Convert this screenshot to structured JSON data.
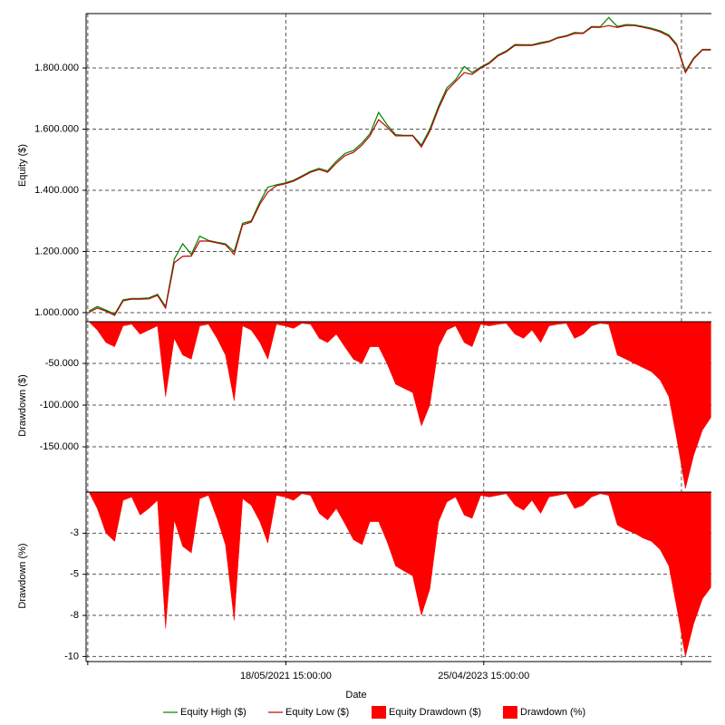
{
  "chart_data": {
    "type": "line",
    "xlabel": "Date",
    "x": [
      "2019-06-15",
      "2019-07-15",
      "2019-08-15",
      "2019-09-15",
      "2019-10-15",
      "2019-11-15",
      "2019-12-15",
      "2020-01-15",
      "2020-02-15",
      "2020-03-15",
      "2020-04-15",
      "2020-05-15",
      "2020-06-15",
      "2020-07-15",
      "2020-08-15",
      "2020-09-15",
      "2020-10-15",
      "2020-11-15",
      "2020-12-15",
      "2021-01-15",
      "2021-02-15",
      "2021-03-15",
      "2021-04-15",
      "2021-05-15",
      "2021-06-15",
      "2021-07-15",
      "2021-08-15",
      "2021-09-15",
      "2021-10-15",
      "2021-11-15",
      "2021-12-15",
      "2022-01-15",
      "2022-02-15",
      "2022-03-15",
      "2022-04-15",
      "2022-05-15",
      "2022-06-15",
      "2022-07-15",
      "2022-08-15",
      "2022-09-15",
      "2022-10-15",
      "2022-11-15",
      "2022-12-15",
      "2023-01-15",
      "2023-02-15",
      "2023-03-15",
      "2023-04-15",
      "2023-05-15",
      "2023-06-15",
      "2023-07-15",
      "2023-08-15",
      "2023-09-15",
      "2023-10-15",
      "2023-11-15",
      "2023-12-15",
      "2024-01-15",
      "2024-02-15",
      "2024-03-15",
      "2024-04-15",
      "2024-05-15",
      "2024-06-15",
      "2024-07-15",
      "2024-08-15",
      "2024-09-15",
      "2024-10-15",
      "2024-11-15",
      "2024-12-15",
      "2025-01-15",
      "2025-02-15",
      "2025-03-15",
      "2025-04-15",
      "2025-05-15",
      "2025-06-15",
      "2025-07-15"
    ],
    "xlim": [
      "2019-06-05",
      "2025-07-17"
    ],
    "xticks": [
      {
        "value": "2019-06-11",
        "label": null
      },
      {
        "value": "2021-05-18T15:00:00",
        "label": "18/05/2021 15:00:00"
      },
      {
        "value": "2023-04-25T15:00:00",
        "label": "25/04/2023 15:00:00"
      },
      {
        "value": "2025-04-01",
        "label": null
      }
    ],
    "grid": true,
    "panels": [
      {
        "ylabel": "Equity ($)",
        "ylim": [
          985000,
          1978000
        ],
        "yticks": [
          {
            "value": 1000000,
            "label": "1.000.000"
          },
          {
            "value": 1200000,
            "label": "1.200.000"
          },
          {
            "value": 1400000,
            "label": "1.400.000"
          },
          {
            "value": 1600000,
            "label": "1.600.000"
          },
          {
            "value": 1800000,
            "label": "1.800.000"
          }
        ],
        "series": [
          {
            "name": "Equity High ($)",
            "type": "line",
            "color": "#008000",
            "values": [
              1005000,
              1020000,
              1008000,
              995000,
              1042000,
              1046000,
              1046000,
              1048000,
              1060000,
              1020000,
              1175000,
              1225000,
              1190000,
              1250000,
              1236000,
              1230000,
              1225000,
              1200000,
              1292000,
              1300000,
              1362000,
              1410000,
              1418000,
              1424000,
              1433000,
              1447000,
              1462000,
              1472000,
              1463000,
              1495000,
              1520000,
              1530000,
              1555000,
              1585000,
              1655000,
              1615000,
              1582000,
              1580000,
              1580000,
              1548000,
              1600000,
              1675000,
              1735000,
              1762000,
              1805000,
              1785000,
              1803000,
              1818000,
              1842000,
              1856000,
              1877000,
              1876000,
              1876000,
              1883000,
              1888000,
              1900000,
              1906000,
              1916000,
              1915000,
              1936000,
              1935000,
              1965000,
              1936000,
              1942000,
              1941000,
              1936000,
              1930000,
              1922000,
              1908000,
              1878000,
              1790000,
              1833000,
              1861000,
              1861000
            ]
          },
          {
            "name": "Equity Low ($)",
            "type": "line",
            "color": "#c00000",
            "values": [
              1000000,
              1015000,
              1005000,
              991000,
              1038000,
              1044000,
              1044000,
              1045000,
              1056000,
              1015000,
              1163000,
              1184000,
              1185000,
              1234000,
              1234000,
              1228000,
              1222000,
              1190000,
              1287000,
              1296000,
              1355000,
              1394000,
              1415000,
              1421000,
              1430000,
              1444000,
              1459000,
              1468000,
              1459000,
              1489000,
              1513000,
              1524000,
              1548000,
              1578000,
              1631000,
              1607000,
              1578000,
              1578000,
              1578000,
              1542000,
              1593000,
              1667000,
              1726000,
              1756000,
              1785000,
              1779000,
              1800000,
              1815000,
              1839000,
              1853000,
              1874000,
              1874000,
              1874000,
              1880000,
              1886000,
              1898000,
              1904000,
              1913000,
              1913000,
              1933000,
              1933000,
              1939000,
              1933000,
              1939000,
              1939000,
              1933000,
              1927000,
              1918000,
              1904000,
              1874000,
              1785000,
              1830000,
              1859000,
              1859000
            ]
          }
        ]
      },
      {
        "ylabel": "Drawdown ($)",
        "ylim": [
          -201000,
          0
        ],
        "yticks": [
          {
            "value": -50000,
            "label": "-50.000"
          },
          {
            "value": -100000,
            "label": "-100.000"
          },
          {
            "value": -150000,
            "label": "-150.000"
          }
        ],
        "series": [
          {
            "name": "Equity Drawdown ($)",
            "type": "area",
            "color": "#ff0000",
            "values": [
              0,
              -10000,
              -25000,
              -30000,
              -5000,
              -3000,
              -15000,
              -10000,
              -5000,
              -90000,
              -20000,
              -40000,
              -45000,
              -5000,
              -3000,
              -20000,
              -40000,
              -95000,
              -5000,
              -10000,
              -25000,
              -45000,
              -3000,
              -5000,
              -8000,
              -2000,
              -3000,
              -20000,
              -25000,
              -15000,
              -30000,
              -45000,
              -50000,
              -30000,
              -30000,
              -50000,
              -75000,
              -80000,
              -85000,
              -125000,
              -100000,
              -30000,
              -10000,
              -5000,
              -25000,
              -30000,
              -3000,
              -5000,
              -3000,
              -2000,
              -15000,
              -20000,
              -10000,
              -25000,
              -5000,
              -3000,
              -2000,
              -20000,
              -15000,
              -5000,
              -2000,
              -3000,
              -40000,
              -45000,
              -50000,
              -55000,
              -60000,
              -70000,
              -90000,
              -140000,
              -200000,
              -160000,
              -130000,
              -115000
            ]
          }
        ]
      },
      {
        "ylabel": "Drawdown (%)",
        "ylim": [
          -10.2,
          0
        ],
        "yticks": [
          {
            "value": -2.5,
            "label": "-3"
          },
          {
            "value": -5,
            "label": "-5"
          },
          {
            "value": -7.5,
            "label": "-8"
          },
          -10
        ],
        "series": [
          {
            "name": "Drawdown (%)",
            "type": "area",
            "color": "#ff0000",
            "values": [
              0,
              -1.0,
              -2.5,
              -3.0,
              -0.5,
              -0.3,
              -1.4,
              -1.0,
              -0.5,
              -8.3,
              -1.7,
              -3.3,
              -3.7,
              -0.4,
              -0.2,
              -1.6,
              -3.2,
              -7.8,
              -0.4,
              -0.8,
              -1.8,
              -3.1,
              -0.2,
              -0.3,
              -0.5,
              -0.1,
              -0.2,
              -1.3,
              -1.7,
              -1.0,
              -1.9,
              -2.9,
              -3.2,
              -1.8,
              -1.8,
              -3.0,
              -4.5,
              -4.8,
              -5.1,
              -7.5,
              -5.9,
              -1.8,
              -0.6,
              -0.3,
              -1.4,
              -1.6,
              -0.2,
              -0.3,
              -0.2,
              -0.1,
              -0.8,
              -1.1,
              -0.5,
              -1.3,
              -0.3,
              -0.2,
              -0.1,
              -1.0,
              -0.8,
              -0.3,
              -0.1,
              -0.2,
              -2.0,
              -2.3,
              -2.5,
              -2.8,
              -3.0,
              -3.5,
              -4.5,
              -7.0,
              -10.0,
              -8.0,
              -6.5,
              -5.8
            ]
          }
        ]
      }
    ]
  }
}
